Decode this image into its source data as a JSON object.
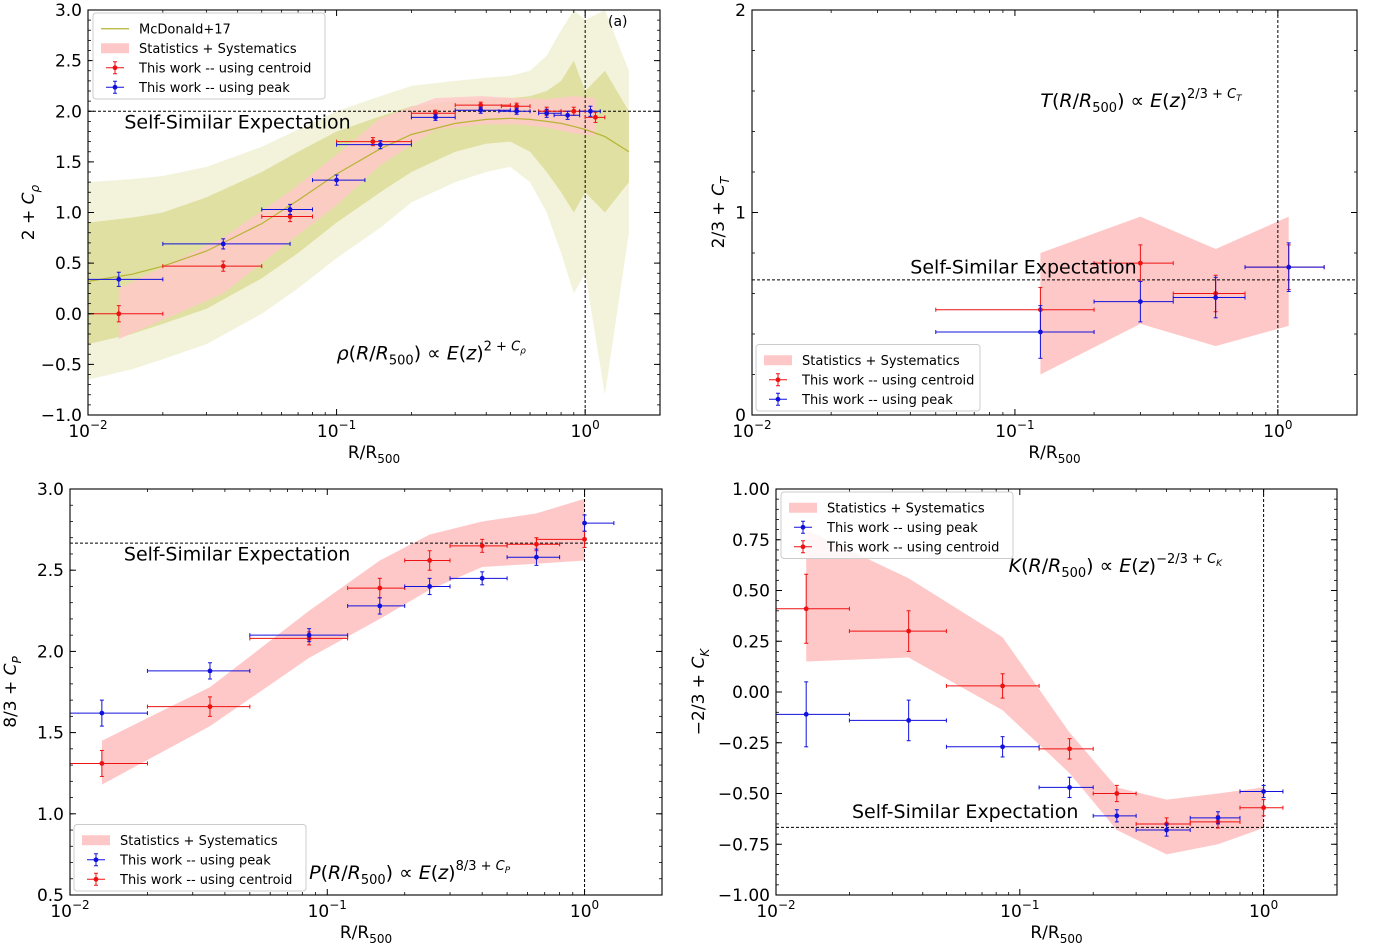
{
  "chart_data": [
    {
      "type": "line",
      "panel_label": "(a)",
      "xlabel_main": "R/R",
      "xlabel_sub": "500",
      "ylabel": "2 + C_ρ",
      "xlim": [
        0.01,
        2.0
      ],
      "ylim": [
        -1.0,
        3.0
      ],
      "xscale": "log",
      "xticks": [
        {
          "value": 0.01,
          "label": "10^{-2}"
        },
        {
          "value": 0.1,
          "label": "10^{-1}"
        },
        {
          "value": 1.0,
          "label": "10^{0}"
        }
      ],
      "yticks": [
        -1.0,
        -0.5,
        0.0,
        0.5,
        1.0,
        1.5,
        2.0,
        2.5,
        3.0
      ],
      "ytick_labels": [
        "−1.0",
        "−0.5",
        "0.0",
        "0.5",
        "1.0",
        "1.5",
        "2.0",
        "2.5",
        "3.0"
      ],
      "hline": 2.0,
      "vline": 1.0,
      "hline_label": "Self-Similar Expectation",
      "hline_label_pos": {
        "x": 0.014,
        "y": 1.83
      },
      "relation": {
        "text": "ρ(R/R500) ∝ E(z)^{2 + Cρ}",
        "x": 0.1,
        "y": -0.45
      },
      "legend": [
        "McDonald+17",
        "Statistics + Systematics",
        "This work -- using centroid",
        "This work -- using peak"
      ],
      "legend_order": [
        "mcdonald",
        "band",
        "red",
        "blue"
      ],
      "legend_position": "top-left",
      "mcdonald": {
        "name": "McDonald+17",
        "x": [
          0.01,
          0.015,
          0.02,
          0.03,
          0.05,
          0.07,
          0.1,
          0.15,
          0.2,
          0.3,
          0.4,
          0.5,
          0.6,
          0.7,
          0.8,
          0.9,
          1.0,
          1.2,
          1.5
        ],
        "y": [
          0.32,
          0.39,
          0.47,
          0.62,
          0.89,
          1.12,
          1.38,
          1.63,
          1.77,
          1.88,
          1.92,
          1.93,
          1.92,
          1.9,
          1.88,
          1.85,
          1.82,
          1.75,
          1.6
        ],
        "inner_lo": [
          -0.3,
          -0.2,
          -0.1,
          0.05,
          0.35,
          0.6,
          0.9,
          1.2,
          1.4,
          1.6,
          1.68,
          1.7,
          1.6,
          1.4,
          1.2,
          1.0,
          1.2,
          1.0,
          1.3
        ],
        "inner_hi": [
          0.9,
          0.95,
          1.0,
          1.15,
          1.4,
          1.6,
          1.8,
          1.95,
          2.05,
          2.1,
          2.12,
          2.13,
          2.15,
          2.2,
          2.3,
          2.5,
          2.2,
          2.4,
          2.0
        ],
        "outer_lo": [
          -0.65,
          -0.55,
          -0.45,
          -0.3,
          0.0,
          0.25,
          0.55,
          0.85,
          1.1,
          1.3,
          1.4,
          1.45,
          1.3,
          1.0,
          0.6,
          0.2,
          0.4,
          -0.8,
          0.8
        ],
        "outer_hi": [
          1.3,
          1.33,
          1.36,
          1.45,
          1.65,
          1.82,
          2.0,
          2.15,
          2.25,
          2.3,
          2.33,
          2.35,
          2.4,
          2.55,
          2.8,
          3.0,
          2.9,
          3.0,
          2.4
        ]
      },
      "band": {
        "x": [
          0.0133,
          0.035,
          0.065,
          0.1,
          0.15,
          0.25,
          0.38,
          0.53,
          0.7,
          0.9,
          1.1
        ],
        "lo": [
          -0.25,
          0.2,
          0.72,
          1.07,
          1.47,
          1.82,
          1.87,
          1.87,
          1.84,
          1.78,
          1.76
        ],
        "hi": [
          0.25,
          0.75,
          1.21,
          1.57,
          1.93,
          2.13,
          2.15,
          2.13,
          2.12,
          2.15,
          2.13
        ]
      },
      "series_red": {
        "name": "This work -- using centroid",
        "x": [
          0.0133,
          0.035,
          0.065,
          0.14,
          0.25,
          0.38,
          0.53,
          0.7,
          0.9,
          1.1
        ],
        "y": [
          0.0,
          0.47,
          0.96,
          1.7,
          1.98,
          2.06,
          2.05,
          2.0,
          2.0,
          1.94
        ],
        "xerr_lo": [
          0.0067,
          0.015,
          0.015,
          0.04,
          0.05,
          0.08,
          0.07,
          0.05,
          0.1,
          0.1
        ],
        "xerr_hi": [
          0.0067,
          0.015,
          0.015,
          0.06,
          0.05,
          0.12,
          0.07,
          0.1,
          0.1,
          0.1
        ],
        "yerr": [
          0.08,
          0.05,
          0.05,
          0.04,
          0.03,
          0.03,
          0.03,
          0.04,
          0.04,
          0.05
        ]
      },
      "series_blue": {
        "name": "This work -- using peak",
        "x": [
          0.0133,
          0.035,
          0.065,
          0.1,
          0.15,
          0.25,
          0.38,
          0.53,
          0.7,
          0.85,
          1.05
        ],
        "y": [
          0.34,
          0.69,
          1.03,
          1.32,
          1.67,
          1.94,
          2.01,
          2.0,
          1.98,
          1.96,
          2.0
        ],
        "xerr_lo": [
          0.0067,
          0.015,
          0.015,
          0.02,
          0.05,
          0.05,
          0.08,
          0.08,
          0.05,
          0.1,
          0.1
        ],
        "xerr_hi": [
          0.0067,
          0.03,
          0.015,
          0.03,
          0.05,
          0.05,
          0.12,
          0.07,
          0.1,
          0.1,
          0.1
        ],
        "yerr": [
          0.07,
          0.05,
          0.05,
          0.05,
          0.04,
          0.03,
          0.03,
          0.03,
          0.04,
          0.04,
          0.05
        ]
      }
    },
    {
      "type": "line",
      "xlabel_main": "R/R",
      "xlabel_sub": "500",
      "ylabel": "2/3 + C_T",
      "xlim": [
        0.01,
        2.0
      ],
      "ylim": [
        0.0,
        2.0
      ],
      "xscale": "log",
      "xticks": [
        {
          "value": 0.01,
          "label": "10^{-2}"
        },
        {
          "value": 0.1,
          "label": "10^{-1}"
        },
        {
          "value": 1.0,
          "label": "10^{0}"
        }
      ],
      "yticks": [
        0,
        1,
        2
      ],
      "ytick_labels": [
        "0",
        "1",
        "2"
      ],
      "hline": 0.667,
      "vline": 1.0,
      "hline_label": "Self-Similar Expectation",
      "hline_label_pos": {
        "x": 0.04,
        "y": 0.7
      },
      "relation": {
        "text": "T(R/R500) ∝ E(z)^{2/3 + C_T}",
        "x": 0.125,
        "y": 1.52
      },
      "legend": [
        "Statistics + Systematics",
        "This work -- using centroid",
        "This work -- using peak"
      ],
      "legend_order": [
        "band",
        "red",
        "blue"
      ],
      "legend_position": "bottom-left",
      "band": {
        "x": [
          0.125,
          0.3,
          0.58,
          1.1
        ],
        "lo": [
          0.2,
          0.45,
          0.34,
          0.44
        ],
        "hi": [
          0.8,
          0.98,
          0.82,
          0.98
        ]
      },
      "series_red": {
        "name": "This work -- using centroid",
        "x": [
          0.125,
          0.3,
          0.58,
          1.1
        ],
        "y": [
          0.52,
          0.75,
          0.6,
          0.73
        ],
        "xerr_lo": [
          0.075,
          0.1,
          0.18,
          0.35
        ],
        "xerr_hi": [
          0.075,
          0.1,
          0.17,
          0.4
        ],
        "yerr": [
          0.11,
          0.09,
          0.09,
          0.11
        ]
      },
      "series_blue": {
        "name": "This work -- using peak",
        "x": [
          0.125,
          0.3,
          0.58,
          1.1
        ],
        "y": [
          0.41,
          0.56,
          0.58,
          0.73
        ],
        "xerr_lo": [
          0.075,
          0.1,
          0.18,
          0.35
        ],
        "xerr_hi": [
          0.075,
          0.1,
          0.17,
          0.4
        ],
        "yerr": [
          0.13,
          0.1,
          0.1,
          0.12
        ]
      }
    },
    {
      "type": "line",
      "xlabel_main": "R/R",
      "xlabel_sub": "500",
      "ylabel": "8/3 + C_P",
      "xlim": [
        0.01,
        2.0
      ],
      "ylim": [
        0.5,
        3.0
      ],
      "xscale": "log",
      "xticks": [
        {
          "value": 0.01,
          "label": "10^{-2}"
        },
        {
          "value": 0.1,
          "label": "10^{-1}"
        },
        {
          "value": 1.0,
          "label": "10^{0}"
        }
      ],
      "yticks": [
        0.5,
        1.0,
        1.5,
        2.0,
        2.5,
        3.0
      ],
      "ytick_labels": [
        "0.5",
        "1.0",
        "1.5",
        "2.0",
        "2.5",
        "3.0"
      ],
      "hline": 2.667,
      "vline": 1.0,
      "hline_label": "Self-Similar Expectation",
      "hline_label_pos": {
        "x": 0.0162,
        "y": 2.56
      },
      "relation": {
        "text": "P(R/R500) ∝ E(z)^{8/3 + C_P}",
        "x": 0.085,
        "y": 0.6
      },
      "legend": [
        "Statistics + Systematics",
        "This work -- using peak",
        "This work -- using centroid"
      ],
      "legend_order": [
        "band",
        "blue",
        "red"
      ],
      "legend_position": "bottom-left",
      "band": {
        "x": [
          0.0133,
          0.035,
          0.085,
          0.16,
          0.25,
          0.4,
          0.65,
          1.0
        ],
        "lo": [
          1.18,
          1.54,
          1.96,
          2.2,
          2.38,
          2.52,
          2.54,
          2.56
        ],
        "hi": [
          1.45,
          1.78,
          2.25,
          2.56,
          2.72,
          2.8,
          2.85,
          2.94
        ]
      },
      "series_red": {
        "name": "This work -- using centroid",
        "x": [
          0.0133,
          0.035,
          0.085,
          0.16,
          0.25,
          0.4,
          0.65,
          1.0
        ],
        "y": [
          1.31,
          1.66,
          2.08,
          2.39,
          2.56,
          2.65,
          2.66,
          2.69
        ],
        "xerr_lo": [
          0.0067,
          0.015,
          0.035,
          0.04,
          0.05,
          0.1,
          0.15,
          0.35
        ],
        "xerr_hi": [
          0.0067,
          0.015,
          0.035,
          0.04,
          0.05,
          0.1,
          0.15,
          0.0
        ],
        "yerr": [
          0.08,
          0.06,
          0.04,
          0.06,
          0.06,
          0.04,
          0.04,
          0.05
        ]
      },
      "series_blue": {
        "name": "This work -- using peak",
        "x": [
          0.0133,
          0.035,
          0.085,
          0.16,
          0.25,
          0.4,
          0.65,
          1.0
        ],
        "y": [
          1.62,
          1.88,
          2.1,
          2.28,
          2.4,
          2.45,
          2.58,
          2.79
        ],
        "xerr_lo": [
          0.0067,
          0.015,
          0.035,
          0.04,
          0.05,
          0.1,
          0.15,
          0.0
        ],
        "xerr_hi": [
          0.0067,
          0.015,
          0.035,
          0.04,
          0.05,
          0.1,
          0.15,
          0.3
        ],
        "yerr": [
          0.08,
          0.05,
          0.04,
          0.05,
          0.05,
          0.04,
          0.05,
          0.05
        ]
      }
    },
    {
      "type": "line",
      "xlabel_main": "R/R",
      "xlabel_sub": "500",
      "ylabel": "−2/3 + C_K",
      "xlim": [
        0.01,
        2.0
      ],
      "ylim": [
        -1.0,
        1.0
      ],
      "xscale": "log",
      "xticks": [
        {
          "value": 0.01,
          "label": "10^{-2}"
        },
        {
          "value": 0.1,
          "label": "10^{-1}"
        },
        {
          "value": 1.0,
          "label": "10^{0}"
        }
      ],
      "yticks": [
        -1.0,
        -0.75,
        -0.5,
        -0.25,
        0.0,
        0.25,
        0.5,
        0.75,
        1.0
      ],
      "ytick_labels": [
        "−1.00",
        "−0.75",
        "−0.50",
        "−0.25",
        "0.00",
        "0.25",
        "0.50",
        "0.75",
        "1.00"
      ],
      "hline": -0.667,
      "vline": 1.0,
      "hline_label": "Self-Similar Expectation",
      "hline_label_pos": {
        "x": 0.0205,
        "y": -0.62
      },
      "relation": {
        "text": "K(R/R500) ∝ E(z)^{−2/3 + C_K}",
        "x": 0.09,
        "y": 0.59
      },
      "legend": [
        "Statistics + Systematics",
        "This work -- using peak",
        "This work -- using centroid"
      ],
      "legend_order": [
        "band",
        "blue",
        "red"
      ],
      "legend_position": "top-left",
      "band": {
        "x": [
          0.0133,
          0.035,
          0.085,
          0.16,
          0.25,
          0.4,
          0.65,
          1.0
        ],
        "lo": [
          0.15,
          0.17,
          -0.09,
          -0.4,
          -0.68,
          -0.8,
          -0.75,
          -0.67
        ],
        "hi": [
          0.8,
          0.56,
          0.27,
          -0.2,
          -0.47,
          -0.53,
          -0.5,
          -0.47
        ]
      },
      "series_red": {
        "name": "This work -- using centroid",
        "x": [
          0.0133,
          0.035,
          0.085,
          0.16,
          0.25,
          0.4,
          0.65,
          1.0
        ],
        "y": [
          0.41,
          0.3,
          0.03,
          -0.28,
          -0.5,
          -0.65,
          -0.64,
          -0.57
        ],
        "xerr_lo": [
          0.0067,
          0.015,
          0.035,
          0.04,
          0.05,
          0.1,
          0.15,
          0.2
        ],
        "xerr_hi": [
          0.0067,
          0.015,
          0.035,
          0.04,
          0.05,
          0.1,
          0.15,
          0.2
        ],
        "yerr": [
          0.17,
          0.1,
          0.06,
          0.05,
          0.04,
          0.03,
          0.03,
          0.04
        ]
      },
      "series_blue": {
        "name": "This work -- using peak",
        "x": [
          0.0133,
          0.035,
          0.085,
          0.16,
          0.25,
          0.4,
          0.65,
          1.0
        ],
        "y": [
          -0.11,
          -0.14,
          -0.27,
          -0.47,
          -0.61,
          -0.68,
          -0.62,
          -0.49
        ],
        "xerr_lo": [
          0.0067,
          0.015,
          0.035,
          0.04,
          0.05,
          0.1,
          0.15,
          0.2
        ],
        "xerr_hi": [
          0.0067,
          0.015,
          0.035,
          0.04,
          0.05,
          0.1,
          0.15,
          0.2
        ],
        "yerr": [
          0.16,
          0.1,
          0.05,
          0.05,
          0.03,
          0.03,
          0.03,
          0.03
        ]
      }
    }
  ],
  "colors": {
    "red": "#ee1111",
    "blue": "#1111dd",
    "band": "#ffc8c8",
    "mcdonald_line": "#b5b533",
    "mcdonald_inner": "#e0e0a2",
    "mcdonald_outer": "#f3f3dc"
  }
}
